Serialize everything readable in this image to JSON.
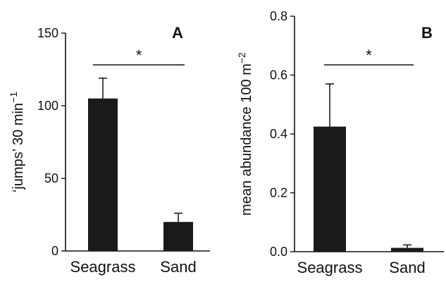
{
  "chart_data": [
    {
      "type": "bar",
      "panel_label": "A",
      "title": "",
      "xlabel": "",
      "ylabel": "‘jumps’ 30 min",
      "ylabel_superscript": "−1",
      "categories": [
        "Seagrass",
        "Sand"
      ],
      "values": [
        105,
        20
      ],
      "error_upper": [
        119,
        26
      ],
      "ylim": [
        0,
        150
      ],
      "yticks": [
        0,
        50,
        100,
        150
      ],
      "ytick_labels": [
        "0",
        "50",
        "100",
        "150"
      ],
      "significance": "*",
      "bar_color": "#1a1a1a",
      "grid": false,
      "legend": "none"
    },
    {
      "type": "bar",
      "panel_label": "B",
      "title": "",
      "xlabel": "",
      "ylabel": "mean abundance 100 m",
      "ylabel_superscript": "−2",
      "categories": [
        "Seagrass",
        "Sand"
      ],
      "values": [
        0.425,
        0.013
      ],
      "error_upper": [
        0.57,
        0.023
      ],
      "ylim": [
        0,
        0.8
      ],
      "yticks": [
        0,
        0.2,
        0.4,
        0.6,
        0.8
      ],
      "ytick_labels": [
        "0.0",
        "0.2",
        "0.4",
        "0.6",
        "0.8"
      ],
      "significance": "*",
      "bar_color": "#1a1a1a",
      "grid": false,
      "legend": "none"
    }
  ]
}
